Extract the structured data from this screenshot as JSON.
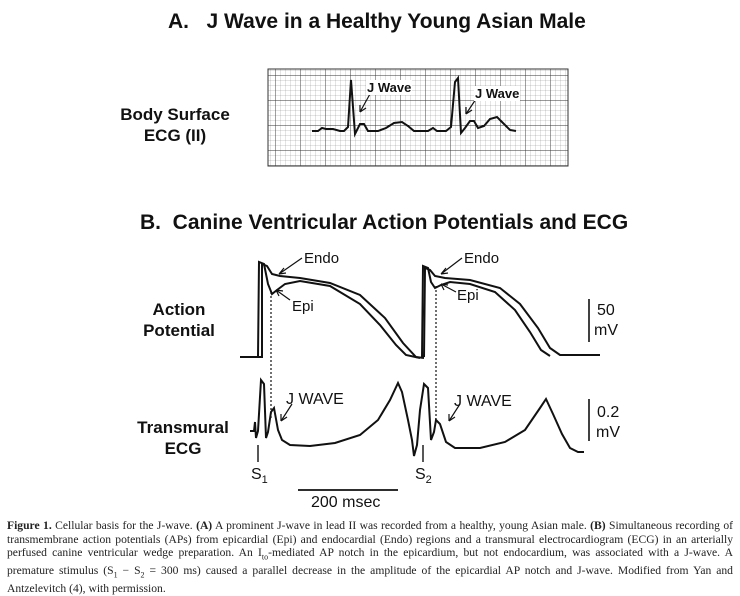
{
  "panel_a": {
    "letter": "A.",
    "title": "J Wave in a Healthy Young Asian Male",
    "ecg_label_line1": "Body Surface",
    "ecg_label_line2": "ECG (II)",
    "annotation_1": "J Wave",
    "annotation_2": "J Wave"
  },
  "panel_b": {
    "letter": "B.",
    "title": "Canine Ventricular Action Potentials and ECG",
    "ap_label_line1": "Action",
    "ap_label_line2": "Potential",
    "ecg_label_line1": "Transmural",
    "ecg_label_line2": "ECG",
    "endo_1": "Endo",
    "endo_2": "Endo",
    "epi_1": "Epi",
    "epi_2": "Epi",
    "jwave_1": "J WAVE",
    "jwave_2": "J WAVE",
    "ap_scale_value": "50",
    "ap_scale_unit": "mV",
    "ecg_scale_value": "0.2",
    "ecg_scale_unit": "mV",
    "stim_1": "S",
    "stim_1_sub": "1",
    "stim_2": "S",
    "stim_2_sub": "2",
    "time_scale": "200 msec"
  },
  "caption": {
    "figure_label": "Figure 1.",
    "text_1": " Cellular basis for the J-wave. ",
    "a_marker": "(A)",
    "text_2": " A prominent J-wave in lead II was recorded from a healthy, young Asian male. ",
    "b_marker": "(B)",
    "text_3": " Simultaneous recording of transmembrane action potentials (APs) from epicardial (Epi) and endocardial (Endo) regions and a transmural electrocardiogram (ECG) in an arterially perfused canine ventricular wedge preparation. An I",
    "ito_sub": "to",
    "text_4": "-mediated AP notch in the epicardium, but not endocardium, was associated with a J-wave. A premature stimulus (S",
    "s1_sub": "1",
    "text_5": " − S",
    "s2_sub": "2",
    "text_6": " = 300 ms) caused a parallel decrease in the amplitude of the epicardial AP notch and J-wave. Modified from Yan and Antzelevitch (4), with permission."
  },
  "colors": {
    "ink": "#111111",
    "grid": "#555555"
  }
}
